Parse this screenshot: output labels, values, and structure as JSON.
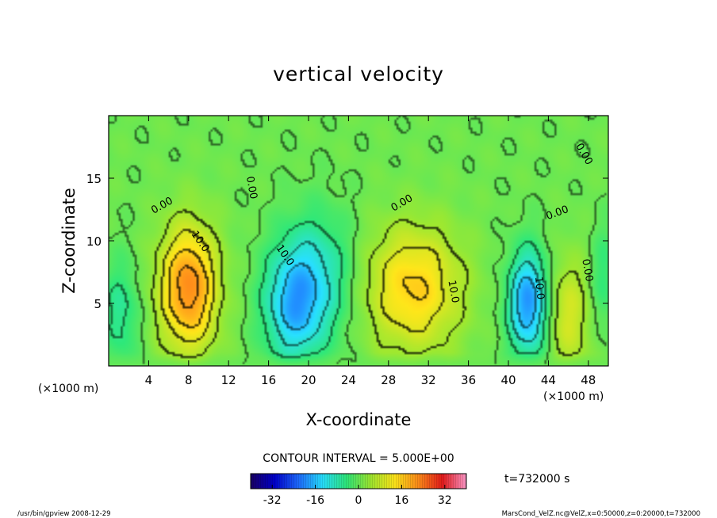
{
  "chart_data": {
    "type": "heatmap",
    "title": "vertical velocity",
    "xlabel": "X-coordinate",
    "ylabel": "Z-coordinate",
    "x_unit_left": "(×1000 m)",
    "x_unit_right": "(×1000 m)",
    "xlim": [
      0,
      50
    ],
    "ylim": [
      0,
      20
    ],
    "x_ticks": [
      "4",
      "8",
      "12",
      "16",
      "20",
      "24",
      "28",
      "32",
      "36",
      "40",
      "44",
      "48"
    ],
    "y_ticks": [
      "5",
      "10",
      "15"
    ],
    "x_tick_values": [
      4,
      8,
      12,
      16,
      20,
      24,
      28,
      32,
      36,
      40,
      44,
      48
    ],
    "y_tick_values": [
      5,
      10,
      15
    ],
    "contour_interval_text": "CONTOUR INTERVAL = 5.000E+00",
    "time_text": "t=732000 s",
    "contour_labels": [
      {
        "text": "0.00",
        "x": 5.5,
        "z": 12.6,
        "angle": -30
      },
      {
        "text": "10.0",
        "x": 8.9,
        "z": 9.8,
        "angle": 55
      },
      {
        "text": "10.0",
        "x": 17.4,
        "z": 8.7,
        "angle": 55
      },
      {
        "text": "0.00",
        "x": 29.5,
        "z": 12.8,
        "angle": -30
      },
      {
        "text": "10.0",
        "x": 34.2,
        "z": 5.9,
        "angle": 80
      },
      {
        "text": "10.0",
        "x": 42.8,
        "z": 6.2,
        "angle": 85
      },
      {
        "text": "0.00",
        "x": 47.6,
        "z": 7.6,
        "angle": 80
      },
      {
        "text": "0.00",
        "x": 14.0,
        "z": 14.2,
        "angle": 80
      },
      {
        "text": "0.00",
        "x": 47.3,
        "z": 16.8,
        "angle": 60
      },
      {
        "text": "0.00",
        "x": 45.0,
        "z": 12.0,
        "angle": -20
      }
    ],
    "features": [
      {
        "sign": "up",
        "x": 8.0,
        "z": 6.2,
        "peak": 22,
        "sx": 2.0,
        "sz": 3.4
      },
      {
        "sign": "down",
        "x": 18.5,
        "z": 4.8,
        "peak": -15,
        "sx": 2.1,
        "sz": 3.2
      },
      {
        "sign": "down",
        "x": 21.0,
        "z": 7.2,
        "peak": -9,
        "sx": 2.6,
        "sz": 3.6
      },
      {
        "sign": "up",
        "x": 30.5,
        "z": 6.2,
        "peak": 15,
        "sx": 3.3,
        "sz": 3.4
      },
      {
        "sign": "down",
        "x": 42.0,
        "z": 5.0,
        "peak": -20,
        "sx": 1.4,
        "sz": 2.9
      },
      {
        "sign": "down",
        "x": 1.2,
        "z": 4.2,
        "peak": -7,
        "sx": 1.3,
        "sz": 3.0
      },
      {
        "sign": "up",
        "x": 46.0,
        "z": 4.0,
        "peak": 9,
        "sx": 1.5,
        "sz": 3.2
      },
      {
        "sign": "down",
        "x": 49.5,
        "z": 7.0,
        "peak": -5,
        "sx": 0.9,
        "sz": 3.0
      }
    ],
    "colorbar": {
      "range": [
        -40,
        40
      ],
      "ticks": [
        "-32",
        "-16",
        "0",
        "16",
        "32"
      ],
      "tick_values": [
        -32,
        -16,
        0,
        16,
        32
      ],
      "colors": [
        "#1a0066",
        "#0000cc",
        "#1e6bff",
        "#28e0ff",
        "#2ee87a",
        "#9ee830",
        "#ffe61a",
        "#ff8c1a",
        "#e61a1a",
        "#ff99cc"
      ]
    }
  },
  "footer": {
    "left": "/usr/bin/gpview   2008-12-29",
    "right": "MarsCond_VelZ.nc@VelZ,x=0:50000,z=0:20000,t=732000"
  }
}
